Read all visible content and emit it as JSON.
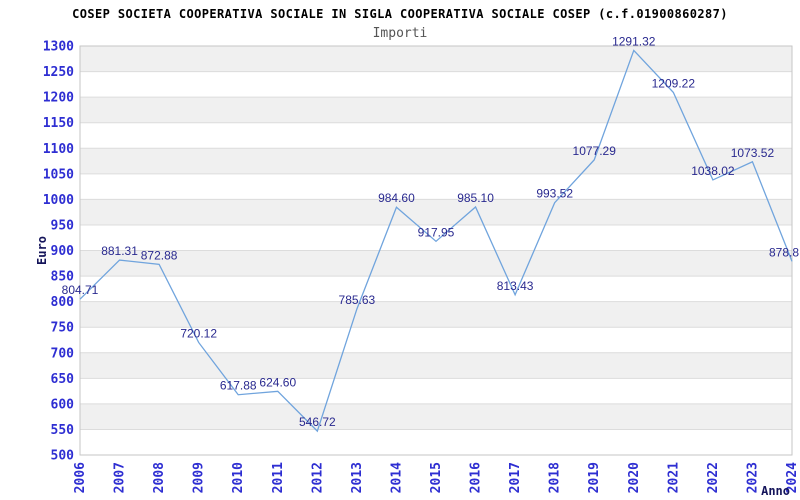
{
  "header": {
    "title": "COSEP SOCIETA COOPERATIVA SOCIALE IN SIGLA COOPERATIVA SOCIALE COSEP (c.f.01900860287)",
    "subtitle": "Importi"
  },
  "chart_data": {
    "type": "line",
    "title": "COSEP SOCIETA COOPERATIVA SOCIALE IN SIGLA COOPERATIVA SOCIALE COSEP (c.f.01900860287)",
    "subtitle": "Importi",
    "xlabel": "Anno",
    "ylabel": "Euro",
    "categories": [
      2006,
      2007,
      2008,
      2009,
      2010,
      2011,
      2012,
      2013,
      2014,
      2015,
      2016,
      2017,
      2018,
      2019,
      2020,
      2021,
      2022,
      2023,
      2024
    ],
    "values": [
      804.71,
      881.31,
      872.88,
      720.12,
      617.88,
      624.6,
      546.72,
      785.63,
      984.6,
      917.95,
      985.1,
      813.43,
      993.52,
      1077.29,
      1291.32,
      1209.22,
      1038.02,
      1073.52,
      878.8
    ],
    "point_labels": [
      "804.71",
      "881.31",
      "872.88",
      "720.12",
      "617.88",
      "624.60",
      "546.72",
      "785.63",
      "984.60",
      "917.95",
      "985.10",
      "813.43",
      "993.52",
      "1077.29",
      "1291.32",
      "1209.22",
      "1038.02",
      "1073.52",
      "878.8"
    ],
    "ylim": [
      500,
      1300
    ],
    "ytick_step": 50,
    "grid": "horizontal-bands-alternating",
    "legend": "none",
    "colors": {
      "line": "#70a4dd",
      "point_label": "#29298f",
      "tick_label": "#2e2ed2",
      "axis_title": "#14145a",
      "band_fill": "#f0f0f0",
      "band_alt": "#ffffff",
      "gridline": "#dcdcdc",
      "plot_border": "#c6c6c6",
      "title": "#000000",
      "subtitle": "#555555"
    }
  }
}
